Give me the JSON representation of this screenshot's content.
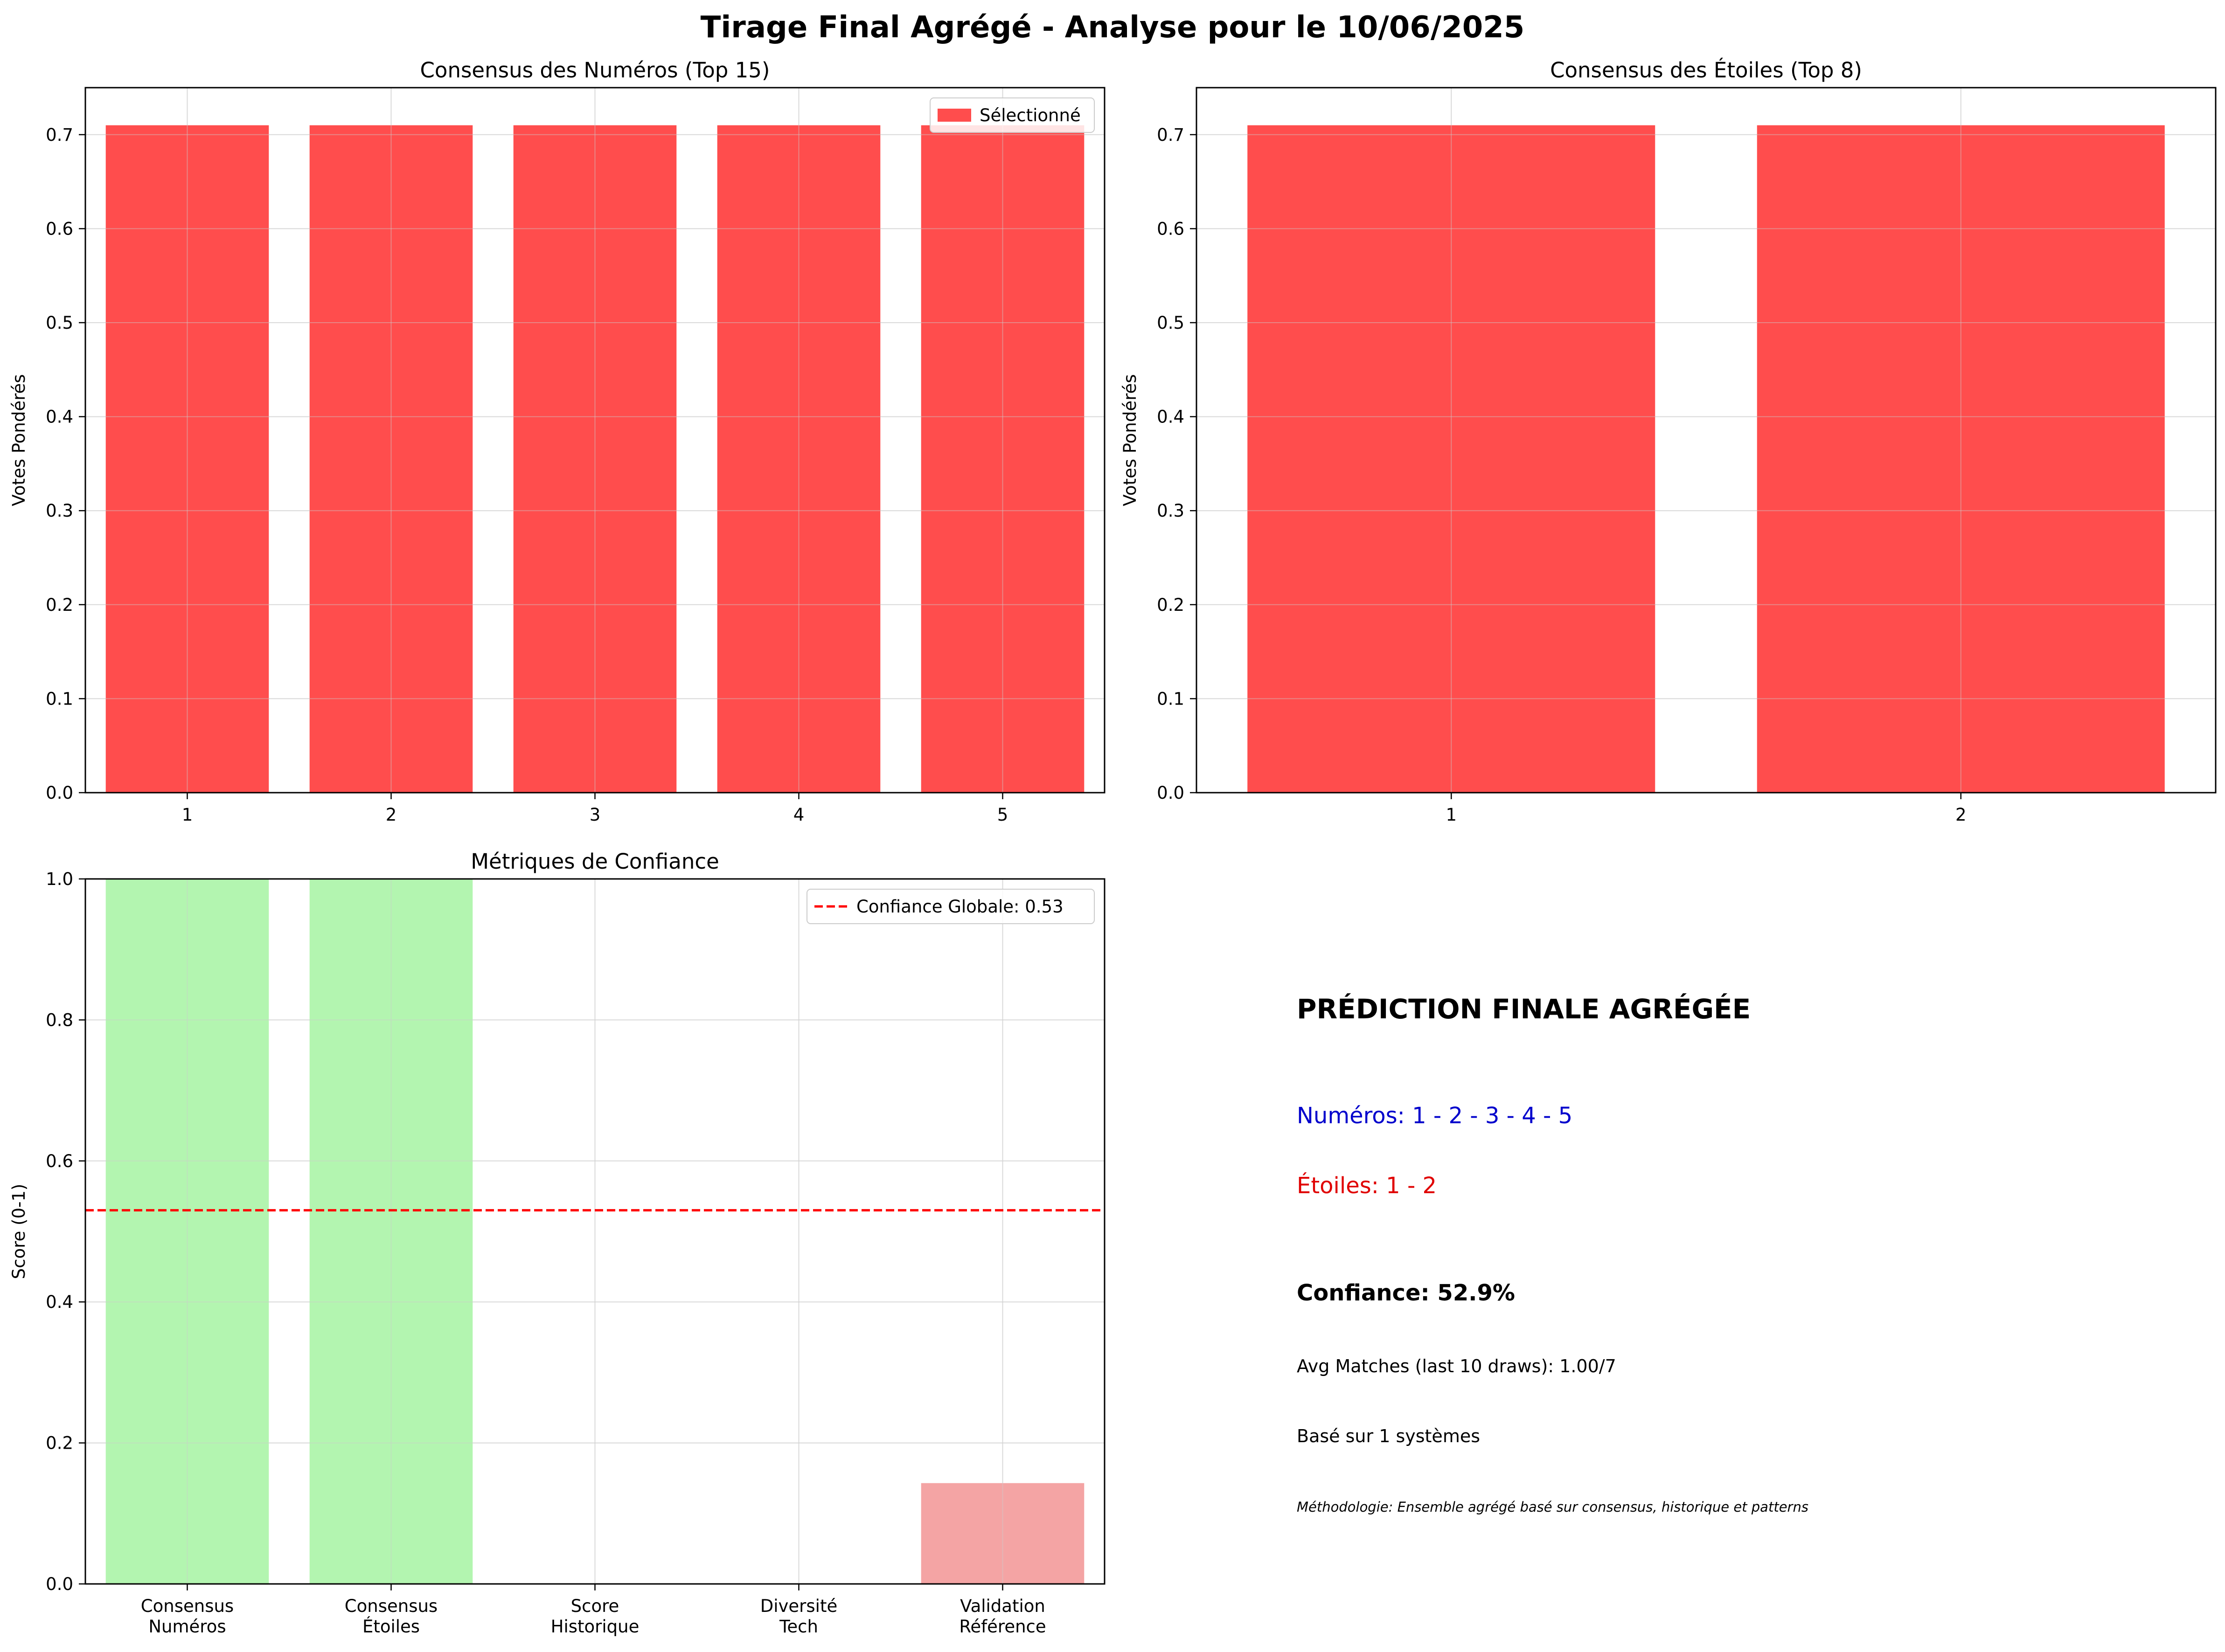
{
  "figure": {
    "title": "Tirage Final Agrégé - Analyse pour le 10/06/2025"
  },
  "chart_data": [
    {
      "type": "bar",
      "title": "Consensus des Numéros (Top 15)",
      "xlabel": "",
      "ylabel": "Votes Pondérés",
      "categories": [
        "1",
        "2",
        "3",
        "4",
        "5"
      ],
      "values": [
        0.71,
        0.71,
        0.71,
        0.71,
        0.71
      ],
      "bar_color": "#ff4d4d",
      "ylim": [
        0,
        0.75
      ],
      "yticks": [
        "0.0",
        "0.1",
        "0.2",
        "0.3",
        "0.4",
        "0.5",
        "0.6",
        "0.7"
      ],
      "grid": true,
      "legend": {
        "position": "top-right",
        "entries": [
          {
            "label": "Sélectionné",
            "color": "#ff4d4d"
          }
        ]
      }
    },
    {
      "type": "bar",
      "title": "Consensus des Étoiles (Top 8)",
      "xlabel": "",
      "ylabel": "Votes Pondérés",
      "categories": [
        "1",
        "2"
      ],
      "values": [
        0.71,
        0.71
      ],
      "bar_color": "#ff4d4d",
      "ylim": [
        0,
        0.75
      ],
      "yticks": [
        "0.0",
        "0.1",
        "0.2",
        "0.3",
        "0.4",
        "0.5",
        "0.6",
        "0.7"
      ],
      "grid": true
    },
    {
      "type": "bar",
      "title": "Métriques de Confiance",
      "xlabel": "",
      "ylabel": "Score (0-1)",
      "categories": [
        [
          "Consensus",
          "Numéros"
        ],
        [
          "Consensus",
          "Étoiles"
        ],
        [
          "Score",
          "Historique"
        ],
        [
          "Diversité",
          "Tech"
        ],
        [
          "Validation",
          "Référence"
        ]
      ],
      "values": [
        1.0,
        1.0,
        0.0,
        0.0,
        0.143
      ],
      "bar_colors": [
        "#b3f5b0",
        "#b3f5b0",
        "#f4a4a4",
        "#f4a4a4",
        "#f4a4a4"
      ],
      "ylim": [
        0,
        1.0
      ],
      "yticks": [
        "0.0",
        "0.2",
        "0.4",
        "0.6",
        "0.8",
        "1.0"
      ],
      "grid": true,
      "reference_line": {
        "value": 0.53,
        "color": "#ff0000",
        "style": "dashed"
      },
      "legend": {
        "position": "top-right",
        "entries": [
          {
            "label": "Confiance Globale: 0.53",
            "color": "#ff0000",
            "style": "dashed-line"
          }
        ]
      }
    }
  ],
  "summary": {
    "title": "PRÉDICTION FINALE AGRÉGÉE",
    "numeros": "Numéros: 1 - 2 - 3 - 4 - 5",
    "etoiles": "Étoiles: 1 - 2",
    "confiance": "Confiance: 52.9%",
    "avg_matches": "Avg Matches (last 10 draws): 1.00/7",
    "base": "Basé sur 1 systèmes",
    "methodologie": "Méthodologie: Ensemble agrégé basé sur consensus, historique et patterns"
  }
}
